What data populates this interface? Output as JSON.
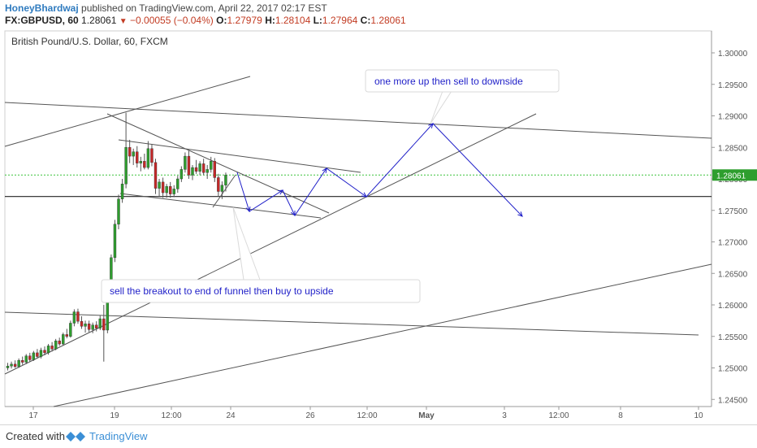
{
  "header": {
    "author": "HoneyBhardwaj",
    "published": "published on TradingView.com, April 22, 2017 02:17 EST",
    "symbol": "FX:GBPUSD, 60",
    "price": "1.28061",
    "change": "−0.00055 (−0.04%)",
    "o_label": "O:",
    "o_value": "1.27979",
    "h_label": "H:",
    "h_value": "1.28104",
    "l_label": "L:",
    "l_value": "1.27964",
    "c_label": "C:",
    "c_value": "1.28061"
  },
  "footer": {
    "created": "Created with",
    "brand": "TradingView"
  },
  "colors": {
    "up": "#2e9e2e",
    "down": "#c62828",
    "annotation": "#1f1fc8",
    "trendline": "#555555"
  },
  "chart_data": {
    "type": "candlestick",
    "title": "British Pound/U.S. Dollar, 60, FXCM",
    "ylim": [
      1.2435,
      1.3065
    ],
    "y_ticks": [
      "1.30000",
      "1.29500",
      "1.29000",
      "1.28500",
      "1.28000",
      "1.27500",
      "1.27000",
      "1.26500",
      "1.26000",
      "1.25500",
      "1.25000",
      "1.24500"
    ],
    "x_ticks": [
      "17",
      "19",
      "12:00",
      "24",
      "26",
      "12:00",
      "May",
      "3",
      "12:00",
      "8",
      "10"
    ],
    "current_price_level": 1.28061,
    "support_level": 1.2772,
    "candles": [
      [
        1.25,
        1.2508,
        1.2496,
        1.2503
      ],
      [
        1.2503,
        1.251,
        1.2499,
        1.2506
      ],
      [
        1.2506,
        1.2512,
        1.25,
        1.2502
      ],
      [
        1.2502,
        1.2515,
        1.25,
        1.2512
      ],
      [
        1.2512,
        1.2518,
        1.2505,
        1.2509
      ],
      [
        1.2509,
        1.2522,
        1.2506,
        1.2519
      ],
      [
        1.2519,
        1.2524,
        1.251,
        1.2513
      ],
      [
        1.2513,
        1.2527,
        1.2511,
        1.2524
      ],
      [
        1.2524,
        1.253,
        1.2515,
        1.2518
      ],
      [
        1.2518,
        1.2532,
        1.2515,
        1.2528
      ],
      [
        1.2528,
        1.2534,
        1.252,
        1.2524
      ],
      [
        1.2524,
        1.2538,
        1.2521,
        1.2535
      ],
      [
        1.2535,
        1.2541,
        1.2526,
        1.253
      ],
      [
        1.253,
        1.2546,
        1.2528,
        1.2543
      ],
      [
        1.2543,
        1.2548,
        1.2535,
        1.2538
      ],
      [
        1.2538,
        1.2556,
        1.2536,
        1.2553
      ],
      [
        1.2553,
        1.2562,
        1.2547,
        1.255
      ],
      [
        1.255,
        1.2575,
        1.2548,
        1.2571
      ],
      [
        1.2571,
        1.2593,
        1.2566,
        1.2589
      ],
      [
        1.2589,
        1.2594,
        1.257,
        1.2574
      ],
      [
        1.2574,
        1.2582,
        1.2562,
        1.2566
      ],
      [
        1.2566,
        1.2575,
        1.2556,
        1.257
      ],
      [
        1.257,
        1.2575,
        1.2557,
        1.2561
      ],
      [
        1.2561,
        1.2572,
        1.2555,
        1.2568
      ],
      [
        1.2568,
        1.2574,
        1.2558,
        1.2563
      ],
      [
        1.2563,
        1.2583,
        1.256,
        1.2578
      ],
      [
        1.2578,
        1.26,
        1.251,
        1.256
      ],
      [
        1.256,
        1.262,
        1.2555,
        1.2615
      ],
      [
        1.2615,
        1.268,
        1.261,
        1.2675
      ],
      [
        1.2675,
        1.2735,
        1.2668,
        1.2728
      ],
      [
        1.2728,
        1.2775,
        1.272,
        1.2768
      ],
      [
        1.2768,
        1.28,
        1.2762,
        1.2792
      ],
      [
        1.2792,
        1.2905,
        1.2785,
        1.285
      ],
      [
        1.285,
        1.2862,
        1.2825,
        1.2836
      ],
      [
        1.2836,
        1.2848,
        1.2822,
        1.2843
      ],
      [
        1.2843,
        1.2852,
        1.2818,
        1.2825
      ],
      [
        1.2825,
        1.2835,
        1.2812,
        1.2828
      ],
      [
        1.2828,
        1.284,
        1.2815,
        1.2818
      ],
      [
        1.2818,
        1.286,
        1.2815,
        1.2848
      ],
      [
        1.2848,
        1.2855,
        1.282,
        1.2826
      ],
      [
        1.2826,
        1.2832,
        1.2776,
        1.2785
      ],
      [
        1.2785,
        1.28,
        1.2772,
        1.2795
      ],
      [
        1.2795,
        1.2802,
        1.277,
        1.2778
      ],
      [
        1.2778,
        1.2792,
        1.277,
        1.2788
      ],
      [
        1.2788,
        1.2795,
        1.277,
        1.2776
      ],
      [
        1.2776,
        1.279,
        1.2771,
        1.2784
      ],
      [
        1.2784,
        1.2805,
        1.2778,
        1.28
      ],
      [
        1.28,
        1.282,
        1.2795,
        1.2815
      ],
      [
        1.2815,
        1.2842,
        1.281,
        1.2836
      ],
      [
        1.2836,
        1.2845,
        1.28,
        1.2806
      ],
      [
        1.2806,
        1.2822,
        1.2798,
        1.2818
      ],
      [
        1.2818,
        1.283,
        1.2808,
        1.2812
      ],
      [
        1.2812,
        1.2828,
        1.2806,
        1.2824
      ],
      [
        1.2824,
        1.2832,
        1.2806,
        1.281
      ],
      [
        1.281,
        1.2822,
        1.28,
        1.2815
      ],
      [
        1.2815,
        1.2835,
        1.281,
        1.2828
      ],
      [
        1.2828,
        1.2833,
        1.2795,
        1.2802
      ],
      [
        1.2802,
        1.2808,
        1.2772,
        1.278
      ],
      [
        1.278,
        1.2796,
        1.2768,
        1.279
      ],
      [
        1.279,
        1.281,
        1.278,
        1.2806
      ]
    ]
  },
  "annotations": {
    "note1": "one more up then sell to downside",
    "note2": "sell the breakout to end of funnel then buy to upside"
  }
}
